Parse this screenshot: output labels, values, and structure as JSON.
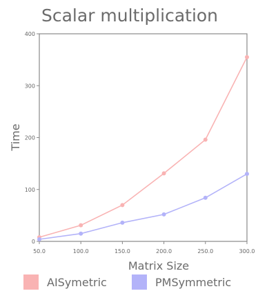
{
  "chart_data": {
    "type": "line",
    "title": "Scalar multiplication",
    "xlabel": "Matrix Size",
    "ylabel": "Time",
    "x": [
      50,
      100,
      150,
      200,
      250,
      300
    ],
    "x_tick_labels": [
      "50.0",
      "100.0",
      "150.0",
      "200.0",
      "250.0",
      "300.0"
    ],
    "y_ticks": [
      0,
      100,
      200,
      300,
      400
    ],
    "xlim": [
      50,
      300
    ],
    "ylim": [
      0,
      400
    ],
    "grid": false,
    "legend_position": "bottom",
    "series": [
      {
        "name": "AISymetric",
        "color": "#f9b3b3",
        "values": [
          8,
          31,
          70,
          131,
          196,
          355
        ]
      },
      {
        "name": "PMSymmetric",
        "color": "#b3b3f9",
        "values": [
          4,
          15,
          36,
          52,
          84,
          130
        ]
      }
    ]
  }
}
